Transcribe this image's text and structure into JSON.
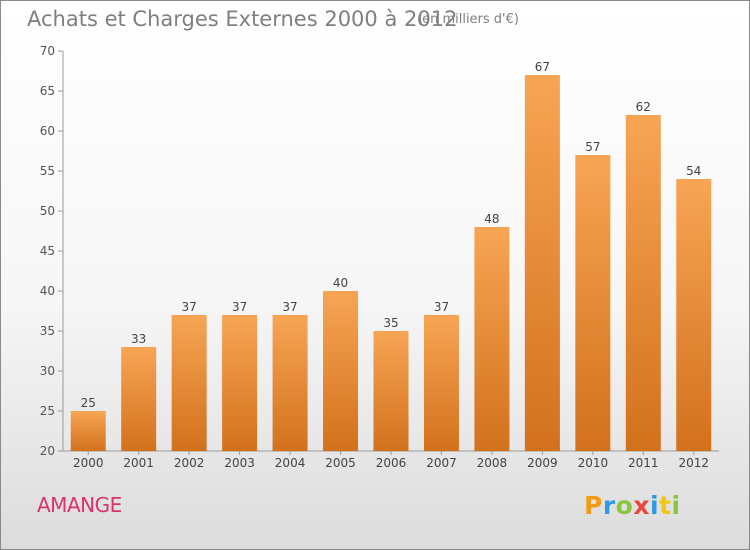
{
  "chart_data": {
    "type": "bar",
    "title": "Achats et Charges Externes 2000 à 2012",
    "subtitle": "(en milliers d'€)",
    "categories": [
      "2000",
      "2001",
      "2002",
      "2003",
      "2004",
      "2005",
      "2006",
      "2007",
      "2008",
      "2009",
      "2010",
      "2011",
      "2012"
    ],
    "values": [
      25,
      33,
      37,
      37,
      37,
      40,
      35,
      37,
      48,
      67,
      57,
      62,
      54
    ],
    "ylim": [
      20,
      70
    ],
    "yticks": [
      20,
      25,
      30,
      35,
      40,
      45,
      50,
      55,
      60,
      65,
      70
    ],
    "xlabel": "",
    "ylabel": "",
    "grid": false,
    "bar_color_top": "#f7a555",
    "bar_color_bottom": "#d2711c"
  },
  "footer": {
    "place": "AMANGE",
    "logo_letters": [
      "P",
      "r",
      "o",
      "x",
      "i",
      "t",
      "i"
    ],
    "logo_colors": [
      "#f39c12",
      "#2e9adf",
      "#8bc43f",
      "#e8483c",
      "#2e9adf",
      "#f3c612",
      "#8bc43f"
    ]
  }
}
